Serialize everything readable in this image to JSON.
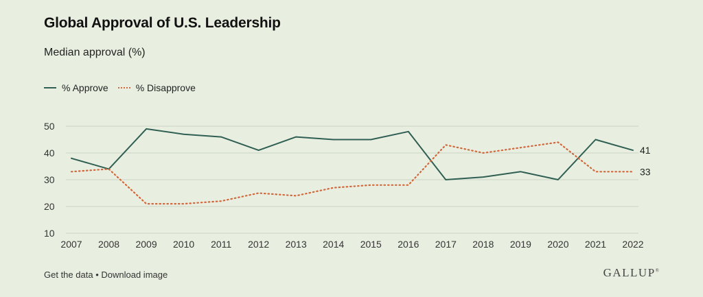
{
  "title": "Global Approval of U.S. Leadership",
  "subtitle": "Median approval (%)",
  "footer": {
    "get_data": "Get the data",
    "separator": "•",
    "download": "Download image"
  },
  "brand": {
    "logo_text": "GALLUP"
  },
  "colors": {
    "approve": "#2f5e52",
    "disapprove": "#d1673a",
    "background": "#e8efe1",
    "grid": "#c9d3c2"
  },
  "chart_data": {
    "type": "line",
    "x": [
      "2007",
      "2008",
      "2009",
      "2010",
      "2011",
      "2012",
      "2013",
      "2014",
      "2015",
      "2016",
      "2017",
      "2018",
      "2019",
      "2020",
      "2021",
      "2022"
    ],
    "series": [
      {
        "name": "% Approve",
        "style": "solid",
        "color": "#2f5e52",
        "values": [
          38,
          34,
          49,
          47,
          46,
          41,
          46,
          45,
          45,
          48,
          30,
          31,
          33,
          30,
          45,
          41
        ]
      },
      {
        "name": "% Disapprove",
        "style": "dotted",
        "color": "#d1673a",
        "values": [
          33,
          34,
          21,
          21,
          22,
          25,
          24,
          27,
          28,
          28,
          43,
          40,
          42,
          44,
          33,
          33
        ]
      }
    ],
    "yticks": [
      10,
      20,
      30,
      40,
      50
    ],
    "ylim": [
      10,
      50
    ],
    "grid": true,
    "legend_position": "top-left",
    "end_labels": [
      "41",
      "33"
    ]
  }
}
